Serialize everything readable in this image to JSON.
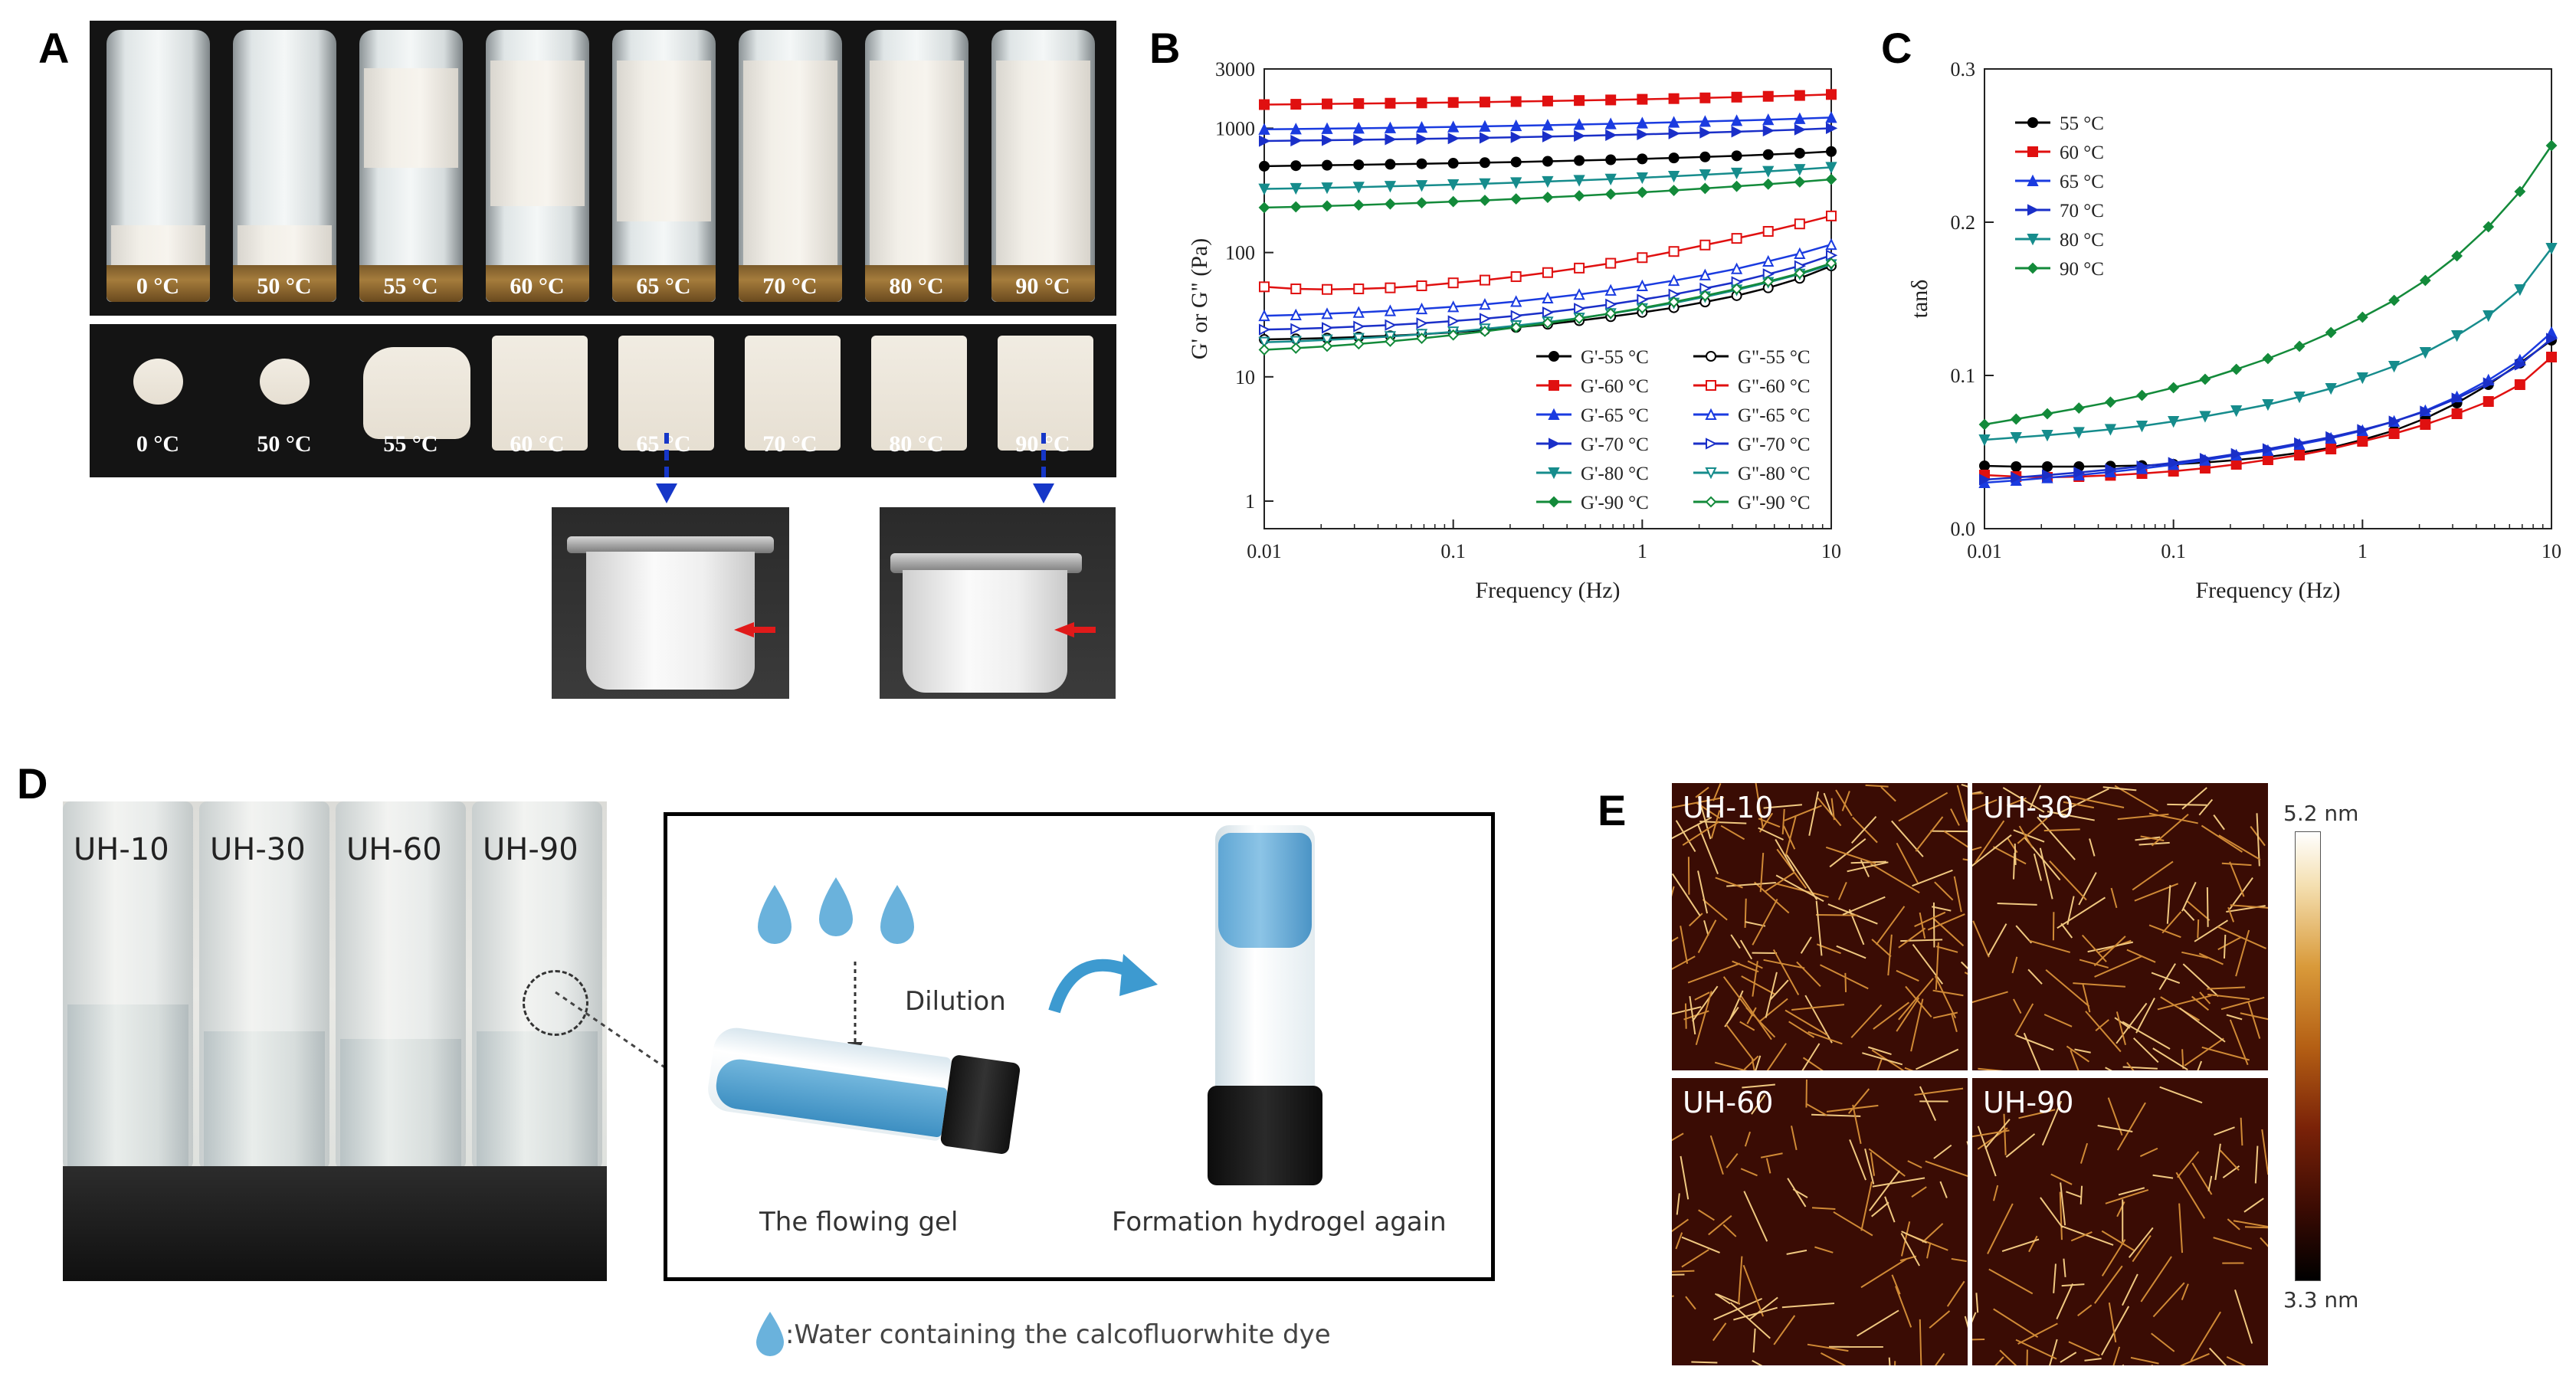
{
  "panels": {
    "a": "A",
    "b": "B",
    "c": "C",
    "d": "D",
    "e": "E"
  },
  "panel_a": {
    "top_labels": [
      "0 °C",
      "50 °C",
      "55 °C",
      "60 °C",
      "65 °C",
      "70 °C",
      "80 °C",
      "90 °C"
    ],
    "bottom_labels": [
      "0 °C",
      "50 °C",
      "55 °C",
      "60 °C",
      "65 °C",
      "70 °C",
      "80 °C",
      "90 °C"
    ]
  },
  "panel_d": {
    "vial_labels": [
      "UH-10",
      "UH-30",
      "UH-60",
      "UH-90"
    ],
    "dilution_label": "Dilution",
    "flowing_gel_label": "The flowing gel",
    "reformation_label": "Formation hydrogel again",
    "legend_text": ":Water containing the calcofluorwhite dye",
    "colors": {
      "dye_blue": "#5aa9d8",
      "frame": "#000000"
    }
  },
  "panel_e": {
    "tiles": [
      "UH-10",
      "UH-30",
      "UH-60",
      "UH-90"
    ],
    "scale_max": "5.2 nm",
    "scale_min": "3.3 nm"
  },
  "chart_data": [
    {
      "type": "line",
      "panel": "B",
      "xlabel": "Frequency (Hz)",
      "ylabel": "G' or G\" (Pa)",
      "x_scale": "log",
      "y_scale": "log",
      "xlim": [
        0.01,
        10
      ],
      "ylim": [
        0.6,
        3000
      ],
      "x_ticks": [
        "0.01",
        "0.1",
        "1",
        "10"
      ],
      "y_ticks": [
        "1",
        "10",
        "100",
        "1000",
        "3000"
      ],
      "x": [
        0.01,
        0.0147,
        0.0215,
        0.0316,
        0.0464,
        0.0681,
        0.1,
        0.147,
        0.215,
        0.316,
        0.464,
        0.681,
        1,
        1.47,
        2.15,
        3.16,
        4.64,
        6.81,
        10
      ],
      "legend_position": "bottom-right",
      "series": [
        {
          "name": "G'-55 °C",
          "color": "#000000",
          "filled": true,
          "marker": "circle",
          "values": [
            495,
            500,
            504,
            508,
            513,
            518,
            523,
            529,
            535,
            542,
            550,
            558,
            567,
            577,
            588,
            600,
            614,
            630,
            650
          ]
        },
        {
          "name": "G'-60 °C",
          "color": "#e01010",
          "filled": true,
          "marker": "square",
          "values": [
            1550,
            1560,
            1570,
            1580,
            1590,
            1600,
            1612,
            1625,
            1640,
            1656,
            1672,
            1690,
            1710,
            1732,
            1755,
            1780,
            1807,
            1836,
            1870
          ]
        },
        {
          "name": "G'-65 °C",
          "color": "#1a3be0",
          "filled": true,
          "marker": "triangle",
          "values": [
            980,
            986,
            993,
            1000,
            1008,
            1017,
            1026,
            1036,
            1047,
            1059,
            1072,
            1086,
            1101,
            1117,
            1134,
            1152,
            1172,
            1194,
            1220
          ]
        },
        {
          "name": "G'-70 °C",
          "color": "#1a2fc8",
          "filled": true,
          "marker": "triangle-right",
          "values": [
            790,
            795,
            801,
            807,
            814,
            821,
            829,
            838,
            847,
            857,
            868,
            880,
            893,
            907,
            922,
            938,
            956,
            976,
            1000
          ]
        },
        {
          "name": "G'-80 °C",
          "color": "#168c8c",
          "filled": true,
          "marker": "triangle-down",
          "values": [
            325,
            328,
            332,
            336,
            341,
            346,
            352,
            358,
            365,
            373,
            381,
            390,
            400,
            411,
            423,
            436,
            450,
            466,
            485
          ]
        },
        {
          "name": "G'-90 °C",
          "color": "#138a3a",
          "filled": true,
          "marker": "diamond",
          "values": [
            230,
            233,
            237,
            241,
            246,
            251,
            257,
            263,
            270,
            278,
            286,
            295,
            305,
            316,
            328,
            341,
            355,
            370,
            388
          ]
        },
        {
          "name": "G\"-55 °C",
          "color": "#000000",
          "filled": false,
          "marker": "circle",
          "values": [
            20,
            20.2,
            20.5,
            20.9,
            21.4,
            22,
            22.8,
            23.8,
            25,
            26.5,
            28.3,
            30.5,
            33,
            36,
            40,
            45,
            52,
            62,
            78
          ]
        },
        {
          "name": "G\"-60 °C",
          "color": "#e01010",
          "filled": false,
          "marker": "square",
          "values": [
            53,
            51,
            50.5,
            51,
            52,
            54,
            57,
            60,
            64,
            69,
            75,
            82,
            91,
            102,
            115,
            130,
            148,
            170,
            197
          ]
        },
        {
          "name": "G\"-65 °C",
          "color": "#1a3be0",
          "filled": false,
          "marker": "triangle",
          "values": [
            31,
            31.5,
            32.2,
            33,
            34,
            35.2,
            36.6,
            38.3,
            40.4,
            43,
            46,
            49.7,
            54,
            59.5,
            66,
            74,
            85,
            98,
            116
          ]
        },
        {
          "name": "G\"-70 °C",
          "color": "#1a2fc8",
          "filled": false,
          "marker": "triangle-right",
          "values": [
            24,
            24.3,
            24.8,
            25.4,
            26.1,
            27,
            28.1,
            29.4,
            31,
            33,
            35.4,
            38.3,
            41.8,
            46,
            51.5,
            58,
            67,
            78,
            95
          ]
        },
        {
          "name": "G\"-80 °C",
          "color": "#168c8c",
          "filled": false,
          "marker": "triangle-down",
          "values": [
            19,
            19.3,
            19.8,
            20.4,
            21.1,
            22,
            23,
            24.3,
            25.8,
            27.6,
            29.7,
            32.3,
            35.4,
            39.2,
            44,
            50,
            57.5,
            67,
            80
          ]
        },
        {
          "name": "G\"-90 °C",
          "color": "#138a3a",
          "filled": false,
          "marker": "diamond",
          "values": [
            16.5,
            17,
            17.6,
            18.4,
            19.3,
            20.4,
            21.7,
            23.2,
            25,
            27.1,
            29.5,
            32.4,
            35.8,
            40,
            45,
            51,
            58.5,
            68,
            82
          ]
        }
      ]
    },
    {
      "type": "line",
      "panel": "C",
      "xlabel": "Frequency (Hz)",
      "ylabel": "tanδ",
      "x_scale": "log",
      "xlim": [
        0.01,
        10
      ],
      "ylim": [
        0,
        0.3
      ],
      "x_ticks": [
        "0.01",
        "0.1",
        "1",
        "10"
      ],
      "y_ticks": [
        "0.0",
        "0.1",
        "0.2",
        "0.3"
      ],
      "x": [
        0.01,
        0.0147,
        0.0215,
        0.0316,
        0.0464,
        0.0681,
        0.1,
        0.147,
        0.215,
        0.316,
        0.464,
        0.681,
        1,
        1.47,
        2.15,
        3.16,
        4.64,
        6.81,
        10
      ],
      "legend_position": "top-left",
      "series": [
        {
          "name": "55 °C",
          "color": "#000000",
          "marker": "circle",
          "values": [
            0.041,
            0.0405,
            0.0405,
            0.0405,
            0.0408,
            0.0412,
            0.042,
            0.0432,
            0.0448,
            0.0468,
            0.0495,
            0.0528,
            0.058,
            0.064,
            0.072,
            0.082,
            0.094,
            0.108,
            0.123
          ]
        },
        {
          "name": "60 °C",
          "color": "#e01010",
          "marker": "square",
          "values": [
            0.035,
            0.034,
            0.0335,
            0.034,
            0.0348,
            0.036,
            0.0375,
            0.0395,
            0.042,
            0.045,
            0.048,
            0.052,
            0.057,
            0.062,
            0.068,
            0.075,
            0.083,
            0.094,
            0.112
          ]
        },
        {
          "name": "65 °C",
          "color": "#1a3be0",
          "marker": "triangle",
          "values": [
            0.03,
            0.0315,
            0.0332,
            0.035,
            0.037,
            0.0392,
            0.0418,
            0.0446,
            0.048,
            0.051,
            0.055,
            0.059,
            0.064,
            0.07,
            0.077,
            0.086,
            0.097,
            0.11,
            0.128
          ]
        },
        {
          "name": "70 °C",
          "color": "#1a2fc8",
          "marker": "triangle-right",
          "values": [
            0.032,
            0.0334,
            0.035,
            0.0367,
            0.0386,
            0.0407,
            0.043,
            0.0457,
            0.0488,
            0.052,
            0.0558,
            0.0598,
            0.0645,
            0.07,
            0.0765,
            0.085,
            0.095,
            0.107,
            0.124
          ]
        },
        {
          "name": "80 °C",
          "color": "#168c8c",
          "marker": "triangle-down",
          "values": [
            0.058,
            0.0595,
            0.061,
            0.0628,
            0.0648,
            0.067,
            0.07,
            0.0733,
            0.077,
            0.081,
            0.086,
            0.0915,
            0.0985,
            0.106,
            0.115,
            0.126,
            0.139,
            0.156,
            0.183
          ]
        },
        {
          "name": "90 °C",
          "color": "#138a3a",
          "marker": "diamond",
          "values": [
            0.068,
            0.0715,
            0.075,
            0.0787,
            0.0826,
            0.087,
            0.092,
            0.0975,
            0.104,
            0.111,
            0.119,
            0.128,
            0.138,
            0.149,
            0.162,
            0.178,
            0.197,
            0.22,
            0.25
          ]
        }
      ]
    }
  ]
}
